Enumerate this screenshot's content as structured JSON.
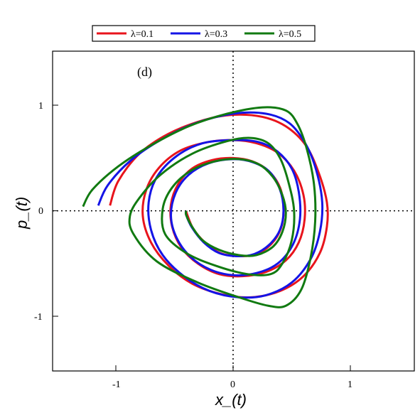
{
  "chart_data": {
    "type": "line",
    "panel_label": "(d)",
    "xlabel": "x_(t)",
    "ylabel": "p_(t)",
    "xlim": [
      -1.55,
      1.55
    ],
    "ylim": [
      -1.52,
      1.52
    ],
    "xticks": [
      -1,
      0,
      1
    ],
    "yticks": [
      -1,
      0,
      1
    ],
    "tick_labels": {
      "x": [
        "-1",
        "0",
        "1"
      ],
      "y": [
        "-1",
        "0",
        "1"
      ]
    },
    "zero_lines": "dotted",
    "grid": false,
    "legend_position": "top (above plot)",
    "series": [
      {
        "name": "λ=0.1",
        "color": "#e8141c",
        "points": [
          [
            -1.05,
            0.05
          ],
          [
            -0.98,
            0.28
          ],
          [
            -0.8,
            0.54
          ],
          [
            -0.55,
            0.73
          ],
          [
            -0.25,
            0.86
          ],
          [
            0.0,
            0.91
          ],
          [
            0.25,
            0.89
          ],
          [
            0.45,
            0.8
          ],
          [
            0.62,
            0.62
          ],
          [
            0.73,
            0.36
          ],
          [
            0.8,
            0.08
          ],
          [
            0.8,
            -0.15
          ],
          [
            0.74,
            -0.4
          ],
          [
            0.6,
            -0.62
          ],
          [
            0.4,
            -0.76
          ],
          [
            0.15,
            -0.82
          ],
          [
            -0.1,
            -0.79
          ],
          [
            -0.35,
            -0.69
          ],
          [
            -0.55,
            -0.52
          ],
          [
            -0.7,
            -0.3
          ],
          [
            -0.77,
            -0.05
          ],
          [
            -0.74,
            0.2
          ],
          [
            -0.63,
            0.41
          ],
          [
            -0.45,
            0.57
          ],
          [
            -0.22,
            0.65
          ],
          [
            0.0,
            0.67
          ],
          [
            0.2,
            0.64
          ],
          [
            0.38,
            0.55
          ],
          [
            0.52,
            0.38
          ],
          [
            0.6,
            0.15
          ],
          [
            0.61,
            -0.08
          ],
          [
            0.56,
            -0.3
          ],
          [
            0.45,
            -0.47
          ],
          [
            0.28,
            -0.58
          ],
          [
            0.08,
            -0.62
          ],
          [
            -0.12,
            -0.6
          ],
          [
            -0.3,
            -0.5
          ],
          [
            -0.44,
            -0.35
          ],
          [
            -0.52,
            -0.15
          ],
          [
            -0.53,
            0.06
          ],
          [
            -0.47,
            0.25
          ],
          [
            -0.35,
            0.4
          ],
          [
            -0.18,
            0.48
          ],
          [
            0.0,
            0.5
          ],
          [
            0.16,
            0.47
          ],
          [
            0.3,
            0.38
          ],
          [
            0.4,
            0.22
          ],
          [
            0.43,
            0.02
          ],
          [
            0.41,
            -0.16
          ],
          [
            0.33,
            -0.31
          ],
          [
            0.2,
            -0.41
          ],
          [
            0.05,
            -0.43
          ],
          [
            -0.11,
            -0.4
          ],
          [
            -0.24,
            -0.3
          ],
          [
            -0.34,
            -0.17
          ],
          [
            -0.39,
            -0.04
          ],
          [
            -0.4,
            0.0
          ]
        ]
      },
      {
        "name": "λ=0.3",
        "color": "#1414e6",
        "points": [
          [
            -1.15,
            0.05
          ],
          [
            -1.07,
            0.24
          ],
          [
            -0.88,
            0.47
          ],
          [
            -0.62,
            0.67
          ],
          [
            -0.32,
            0.83
          ],
          [
            0.0,
            0.92
          ],
          [
            0.28,
            0.92
          ],
          [
            0.48,
            0.83
          ],
          [
            0.62,
            0.63
          ],
          [
            0.71,
            0.38
          ],
          [
            0.76,
            0.08
          ],
          [
            0.74,
            -0.2
          ],
          [
            0.66,
            -0.46
          ],
          [
            0.5,
            -0.68
          ],
          [
            0.28,
            -0.8
          ],
          [
            0.05,
            -0.82
          ],
          [
            -0.2,
            -0.76
          ],
          [
            -0.42,
            -0.62
          ],
          [
            -0.6,
            -0.42
          ],
          [
            -0.7,
            -0.18
          ],
          [
            -0.72,
            0.08
          ],
          [
            -0.65,
            0.32
          ],
          [
            -0.48,
            0.52
          ],
          [
            -0.26,
            0.64
          ],
          [
            0.0,
            0.67
          ],
          [
            0.22,
            0.65
          ],
          [
            0.38,
            0.56
          ],
          [
            0.5,
            0.4
          ],
          [
            0.56,
            0.18
          ],
          [
            0.57,
            -0.08
          ],
          [
            0.51,
            -0.32
          ],
          [
            0.38,
            -0.5
          ],
          [
            0.2,
            -0.59
          ],
          [
            0.0,
            -0.61
          ],
          [
            -0.19,
            -0.56
          ],
          [
            -0.36,
            -0.44
          ],
          [
            -0.48,
            -0.26
          ],
          [
            -0.53,
            -0.05
          ],
          [
            -0.49,
            0.17
          ],
          [
            -0.38,
            0.34
          ],
          [
            -0.21,
            0.45
          ],
          [
            0.0,
            0.49
          ],
          [
            0.17,
            0.46
          ],
          [
            0.31,
            0.37
          ],
          [
            0.4,
            0.2
          ],
          [
            0.43,
            0.0
          ],
          [
            0.4,
            -0.18
          ],
          [
            0.31,
            -0.32
          ],
          [
            0.18,
            -0.41
          ],
          [
            0.03,
            -0.43
          ],
          [
            -0.12,
            -0.4
          ],
          [
            -0.25,
            -0.3
          ],
          [
            -0.35,
            -0.16
          ],
          [
            -0.4,
            -0.04
          ],
          [
            -0.4,
            0.0
          ]
        ]
      },
      {
        "name": "λ=0.5",
        "color": "#117a11",
        "points": [
          [
            -1.28,
            0.04
          ],
          [
            -1.2,
            0.2
          ],
          [
            -0.98,
            0.42
          ],
          [
            -0.7,
            0.62
          ],
          [
            -0.38,
            0.8
          ],
          [
            -0.05,
            0.92
          ],
          [
            0.25,
            0.98
          ],
          [
            0.45,
            0.95
          ],
          [
            0.55,
            0.82
          ],
          [
            0.63,
            0.58
          ],
          [
            0.69,
            0.25
          ],
          [
            0.7,
            -0.1
          ],
          [
            0.66,
            -0.45
          ],
          [
            0.58,
            -0.75
          ],
          [
            0.45,
            -0.9
          ],
          [
            0.3,
            -0.9
          ],
          [
            0.05,
            -0.82
          ],
          [
            -0.3,
            -0.68
          ],
          [
            -0.65,
            -0.48
          ],
          [
            -0.85,
            -0.22
          ],
          [
            -0.88,
            -0.05
          ],
          [
            -0.8,
            0.12
          ],
          [
            -0.62,
            0.34
          ],
          [
            -0.35,
            0.54
          ],
          [
            -0.05,
            0.66
          ],
          [
            0.15,
            0.69
          ],
          [
            0.3,
            0.64
          ],
          [
            0.4,
            0.5
          ],
          [
            0.47,
            0.28
          ],
          [
            0.52,
            0.0
          ],
          [
            0.5,
            -0.28
          ],
          [
            0.42,
            -0.5
          ],
          [
            0.32,
            -0.6
          ],
          [
            0.12,
            -0.6
          ],
          [
            -0.15,
            -0.52
          ],
          [
            -0.4,
            -0.4
          ],
          [
            -0.58,
            -0.22
          ],
          [
            -0.6,
            0.02
          ],
          [
            -0.52,
            0.22
          ],
          [
            -0.36,
            0.38
          ],
          [
            -0.15,
            0.47
          ],
          [
            0.05,
            0.49
          ],
          [
            0.22,
            0.44
          ],
          [
            0.34,
            0.32
          ],
          [
            0.42,
            0.15
          ],
          [
            0.45,
            -0.02
          ],
          [
            0.42,
            -0.2
          ],
          [
            0.34,
            -0.34
          ],
          [
            0.2,
            -0.42
          ],
          [
            0.05,
            -0.42
          ],
          [
            -0.12,
            -0.37
          ],
          [
            -0.26,
            -0.28
          ],
          [
            -0.35,
            -0.15
          ],
          [
            -0.4,
            -0.04
          ],
          [
            -0.4,
            0.0
          ]
        ]
      }
    ]
  }
}
